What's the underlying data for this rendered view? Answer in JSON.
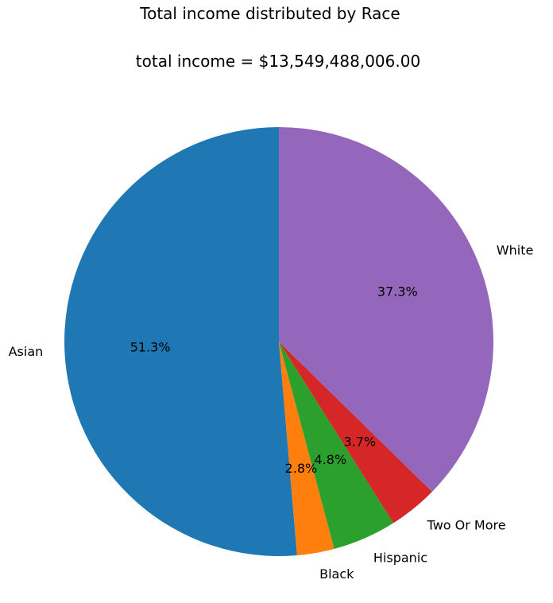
{
  "chart_data": {
    "type": "pie",
    "title": "Total income distributed by Race",
    "subtitle": "total income = $13,549,488,006.00",
    "start_angle_deg": 90,
    "direction": "counterclockwise",
    "slices": [
      {
        "label": "Asian",
        "value": 51.3,
        "pct_label": "51.3%",
        "color": "#1f77b4"
      },
      {
        "label": "Black",
        "value": 2.8,
        "pct_label": "2.8%",
        "color": "#ff7f0e"
      },
      {
        "label": "Hispanic",
        "value": 4.8,
        "pct_label": "4.8%",
        "color": "#2ca02c"
      },
      {
        "label": "Two Or More",
        "value": 3.7,
        "pct_label": "3.7%",
        "color": "#d62728"
      },
      {
        "label": "White",
        "value": 37.3,
        "pct_label": "37.3%",
        "color": "#9467bd"
      }
    ]
  }
}
